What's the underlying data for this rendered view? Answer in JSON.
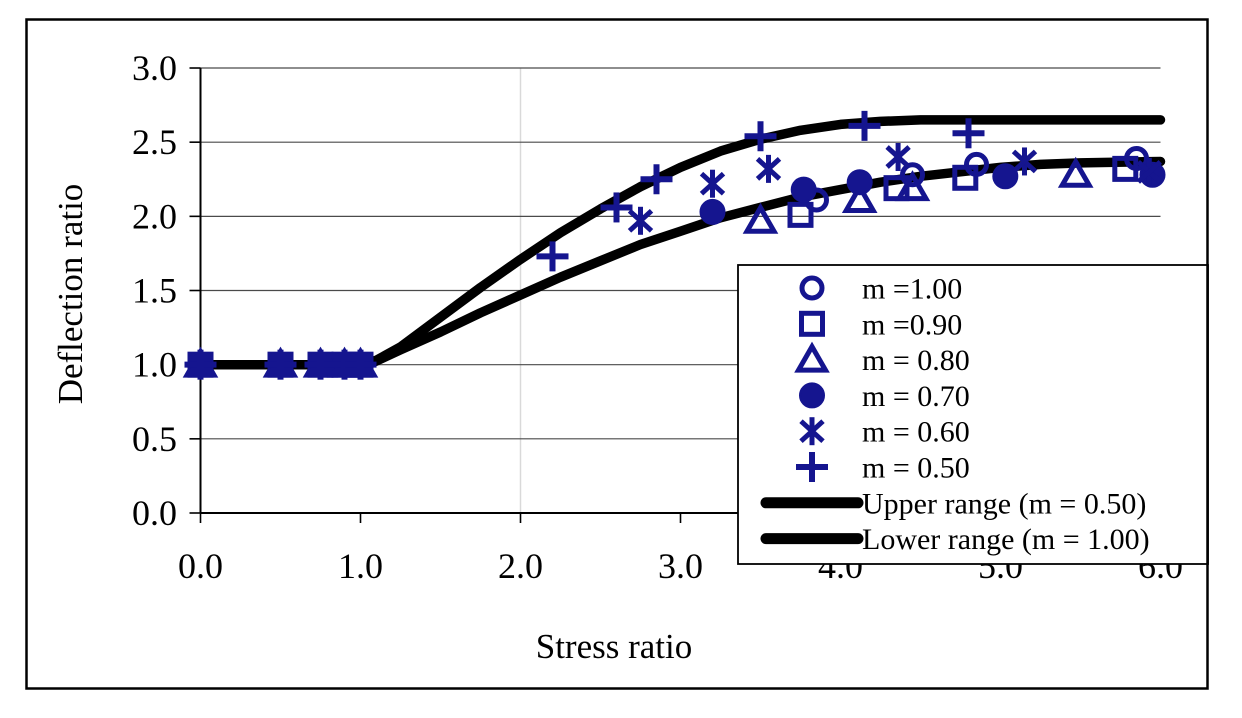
{
  "figure": {
    "background": "#ffffff",
    "border_color": "#000000"
  },
  "chart_data": {
    "type": "scatter",
    "title": "",
    "xlabel": "Stress ratio",
    "ylabel": "Deflection ratio",
    "xlim": [
      0.0,
      6.0
    ],
    "ylim": [
      0.0,
      3.0
    ],
    "x_ticks": [
      0,
      1,
      2,
      3,
      4,
      5,
      6
    ],
    "x_tick_labels": [
      "0.0",
      "1.0",
      "2.0",
      "3.0",
      "4.0",
      "5.0",
      "6.0"
    ],
    "y_ticks": [
      0,
      0.5,
      1,
      1.5,
      2,
      2.5,
      3
    ],
    "y_tick_labels": [
      "0.0",
      "0.5",
      "1.0",
      "1.5",
      "2.0",
      "2.5",
      "3.0"
    ],
    "grid": {
      "horizontal_gridlines": true,
      "vertical_gridlines_at": [
        2.0
      ],
      "gridline_color": "#4a4a4a",
      "vertical_gridline_color": "#d9d9d9"
    },
    "marker_color": "#15158F",
    "line_color": "#000000",
    "legend": {
      "position": "inside-bottom-right",
      "border_color": "#000000",
      "background": "#ffffff"
    },
    "series": [
      {
        "name": "m =1.00",
        "marker": "circle",
        "points": [
          [
            0,
            1
          ],
          [
            0.5,
            1
          ],
          [
            0.75,
            1
          ],
          [
            0.9,
            1
          ],
          [
            1.0,
            1
          ],
          [
            3.85,
            2.11
          ],
          [
            4.45,
            2.28
          ],
          [
            4.85,
            2.35
          ],
          [
            5.85,
            2.39
          ]
        ]
      },
      {
        "name": "m =0.90",
        "marker": "square",
        "points": [
          [
            0,
            1
          ],
          [
            0.5,
            1
          ],
          [
            0.75,
            1
          ],
          [
            0.9,
            1
          ],
          [
            1.0,
            1
          ],
          [
            3.75,
            2.01
          ],
          [
            4.35,
            2.19
          ],
          [
            4.78,
            2.26
          ],
          [
            5.78,
            2.32
          ]
        ]
      },
      {
        "name": "m = 0.80",
        "marker": "triangle",
        "points": [
          [
            0,
            1
          ],
          [
            0.5,
            1
          ],
          [
            0.75,
            1
          ],
          [
            0.9,
            1
          ],
          [
            1.0,
            1
          ],
          [
            3.5,
            1.97
          ],
          [
            4.12,
            2.11
          ],
          [
            4.45,
            2.19
          ],
          [
            5.47,
            2.28
          ]
        ]
      },
      {
        "name": "m = 0.70",
        "marker": "filled-circle",
        "points": [
          [
            0,
            1
          ],
          [
            0.5,
            1
          ],
          [
            0.75,
            1
          ],
          [
            0.9,
            1
          ],
          [
            1.0,
            1
          ],
          [
            3.2,
            2.03
          ],
          [
            3.77,
            2.18
          ],
          [
            4.12,
            2.23
          ],
          [
            5.03,
            2.27
          ],
          [
            5.95,
            2.28
          ]
        ]
      },
      {
        "name": "m = 0.60",
        "marker": "star",
        "points": [
          [
            0,
            1
          ],
          [
            0.5,
            1
          ],
          [
            0.75,
            1
          ],
          [
            0.9,
            1
          ],
          [
            1.0,
            1
          ],
          [
            2.75,
            1.97
          ],
          [
            3.2,
            2.22
          ],
          [
            3.55,
            2.32
          ],
          [
            4.36,
            2.4
          ],
          [
            5.15,
            2.37
          ],
          [
            5.93,
            2.3
          ]
        ]
      },
      {
        "name": "m = 0.50",
        "marker": "plus",
        "points": [
          [
            0,
            1
          ],
          [
            0.5,
            1
          ],
          [
            0.75,
            1
          ],
          [
            0.9,
            1
          ],
          [
            1.0,
            1
          ],
          [
            2.2,
            1.73
          ],
          [
            2.6,
            2.06
          ],
          [
            2.85,
            2.25
          ],
          [
            3.5,
            2.54
          ],
          [
            4.15,
            2.61
          ],
          [
            4.8,
            2.56
          ]
        ]
      },
      {
        "name": "Upper range (m = 0.50)",
        "type": "line",
        "points": [
          [
            0,
            1
          ],
          [
            0.5,
            1
          ],
          [
            1.0,
            1
          ],
          [
            1.1,
            1.03
          ],
          [
            1.25,
            1.12
          ],
          [
            1.5,
            1.32
          ],
          [
            1.75,
            1.52
          ],
          [
            2.0,
            1.71
          ],
          [
            2.25,
            1.89
          ],
          [
            2.5,
            2.05
          ],
          [
            2.75,
            2.2
          ],
          [
            3.0,
            2.33
          ],
          [
            3.25,
            2.44
          ],
          [
            3.5,
            2.52
          ],
          [
            3.75,
            2.58
          ],
          [
            4.0,
            2.62
          ],
          [
            4.25,
            2.64
          ],
          [
            4.5,
            2.65
          ],
          [
            5.0,
            2.65
          ],
          [
            5.5,
            2.65
          ],
          [
            6.0,
            2.65
          ]
        ]
      },
      {
        "name": "Lower range (m = 1.00)",
        "type": "line",
        "points": [
          [
            0,
            1
          ],
          [
            0.5,
            1
          ],
          [
            1.05,
            1
          ],
          [
            1.25,
            1.1
          ],
          [
            1.5,
            1.22
          ],
          [
            1.75,
            1.35
          ],
          [
            2.0,
            1.47
          ],
          [
            2.25,
            1.59
          ],
          [
            2.5,
            1.7
          ],
          [
            2.75,
            1.81
          ],
          [
            3.0,
            1.9
          ],
          [
            3.25,
            1.99
          ],
          [
            3.5,
            2.06
          ],
          [
            3.75,
            2.13
          ],
          [
            4.0,
            2.18
          ],
          [
            4.25,
            2.23
          ],
          [
            4.5,
            2.27
          ],
          [
            4.75,
            2.3
          ],
          [
            5.0,
            2.33
          ],
          [
            5.25,
            2.35
          ],
          [
            5.5,
            2.36
          ],
          [
            6.0,
            2.37
          ]
        ]
      }
    ]
  }
}
